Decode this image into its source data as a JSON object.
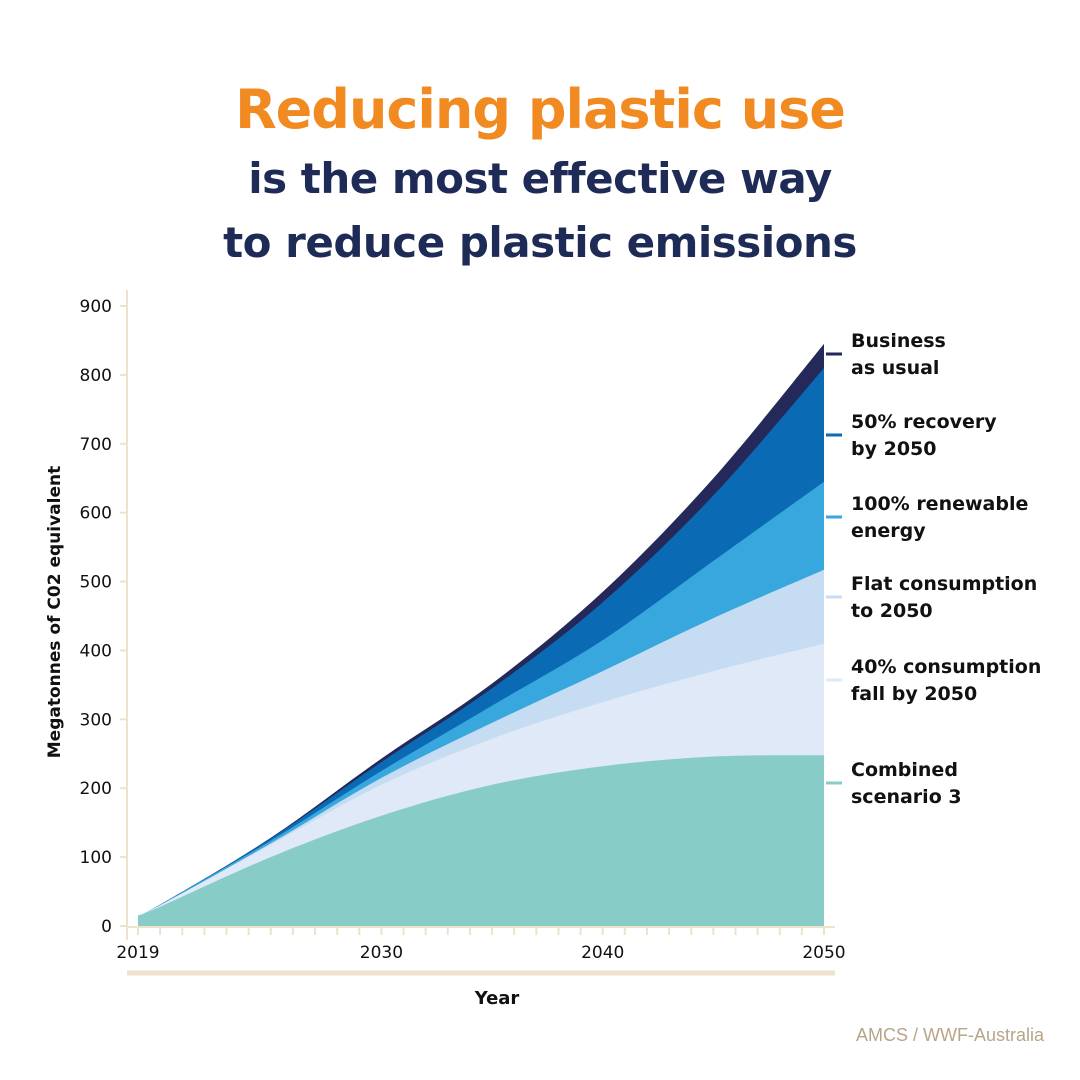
{
  "title": {
    "line1": "Reducing plastic use",
    "line2": "is the most effective way",
    "line3": "to reduce plastic emissions"
  },
  "source": "AMCS / WWF-Australia",
  "colors": {
    "title_accent": "#f28a22",
    "title_main": "#1f2b57",
    "axis": "#ede2cc",
    "source": "#b8a48a"
  },
  "chart_data": {
    "type": "area",
    "stacked": true,
    "xlabel": "Year",
    "ylabel": "Megatonnes of C02 equivalent",
    "xlim": [
      2019,
      2050
    ],
    "ylim": [
      0,
      900
    ],
    "yticks": [
      0,
      100,
      200,
      300,
      400,
      500,
      600,
      700,
      800,
      900
    ],
    "xticks": [
      2019,
      2030,
      2040,
      2050
    ],
    "x": [
      2019,
      2020,
      2025,
      2030,
      2035,
      2040,
      2045,
      2050
    ],
    "series": [
      {
        "name": "Combined scenario 3",
        "color": "#88ccc7",
        "values": [
          15,
          28,
          100,
          160,
          205,
          232,
          246,
          248
        ]
      },
      {
        "name": "40% consumption fall by 2050",
        "color": "#dfe9f7",
        "values": [
          15,
          30,
          118,
          205,
          272,
          325,
          370,
          410
        ]
      },
      {
        "name": "Flat consumption to 2050",
        "color": "#c5dcf2",
        "values": [
          15,
          30,
          120,
          215,
          295,
          370,
          447,
          517
        ]
      },
      {
        "name": "100% renewable energy",
        "color": "#38a7de",
        "values": [
          15,
          31,
          124,
          225,
          320,
          415,
          530,
          645
        ]
      },
      {
        "name": "50% recovery by 2050",
        "color": "#0a6ab4",
        "values": [
          15,
          31,
          127,
          238,
          345,
          470,
          625,
          810
        ]
      },
      {
        "name": "Business as usual",
        "color": "#24295a",
        "values": [
          15,
          31,
          128,
          243,
          352,
          485,
          650,
          845
        ]
      }
    ],
    "legend_position": "right",
    "grid": false
  }
}
